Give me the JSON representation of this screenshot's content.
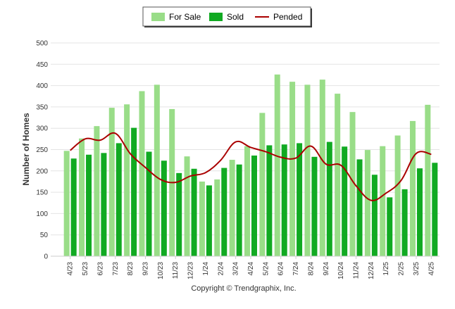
{
  "chart_data": {
    "type": "bar",
    "ylabel": "Number of Homes",
    "ylim": [
      0,
      500
    ],
    "yticks": [
      "0",
      "50",
      "100",
      "150",
      "200",
      "250",
      "300",
      "350",
      "400",
      "450",
      "500"
    ],
    "grid": true,
    "legend_position": "top-center",
    "categories": [
      "4/23",
      "5/23",
      "6/23",
      "7/23",
      "8/23",
      "9/23",
      "10/23",
      "11/23",
      "12/23",
      "1/24",
      "2/24",
      "3/24",
      "4/24",
      "5/24",
      "6/24",
      "7/24",
      "8/24",
      "9/24",
      "10/24",
      "11/24",
      "12/24",
      "1/25",
      "2/25",
      "3/25",
      "4/25"
    ],
    "series": [
      {
        "name": "For Sale",
        "kind": "bar",
        "color": "#99dd88",
        "values": [
          247,
          276,
          305,
          348,
          356,
          387,
          402,
          345,
          234,
          175,
          180,
          226,
          258,
          336,
          426,
          409,
          402,
          414,
          381,
          338,
          249,
          258,
          283,
          317,
          355
        ]
      },
      {
        "name": "Sold",
        "kind": "bar",
        "color": "#11aa22",
        "values": [
          229,
          238,
          242,
          265,
          301,
          245,
          224,
          195,
          205,
          166,
          207,
          215,
          236,
          260,
          262,
          265,
          233,
          268,
          257,
          227,
          191,
          138,
          157,
          206,
          219
        ]
      },
      {
        "name": "Pended",
        "kind": "line",
        "color": "#aa0000",
        "values": [
          248,
          275,
          272,
          288,
          240,
          208,
          180,
          173,
          188,
          196,
          225,
          268,
          255,
          245,
          232,
          230,
          258,
          216,
          213,
          165,
          131,
          148,
          178,
          241,
          239
        ]
      }
    ]
  },
  "copyright": "Copyright © Trendgraphix, Inc."
}
